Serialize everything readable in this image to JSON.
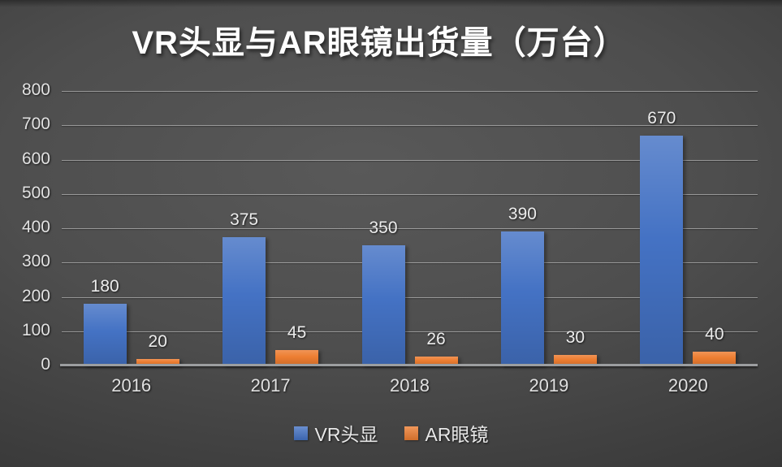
{
  "chart_data": {
    "type": "bar",
    "title": "VR头显与AR眼镜出货量（万台）",
    "categories": [
      "2016",
      "2017",
      "2018",
      "2019",
      "2020"
    ],
    "series": [
      {
        "name": "VR头显",
        "color": "#4472C4",
        "values": [
          180,
          375,
          350,
          390,
          670
        ]
      },
      {
        "name": "AR眼镜",
        "color": "#ED7D31",
        "values": [
          20,
          45,
          26,
          30,
          40
        ]
      }
    ],
    "xlabel": "",
    "ylabel": "",
    "ylim": [
      0,
      800
    ],
    "yticks": [
      0,
      100,
      200,
      300,
      400,
      500,
      600,
      700,
      800
    ],
    "grid": true,
    "data_labels": true,
    "legend_position": "bottom"
  },
  "colors": {
    "background_center": "#595959",
    "background_edge": "#242424",
    "gridline": "rgba(255,255,255,0.42)",
    "axis": "#9c9ea0",
    "text": "#e8e8e8",
    "title": "#ffffff"
  }
}
